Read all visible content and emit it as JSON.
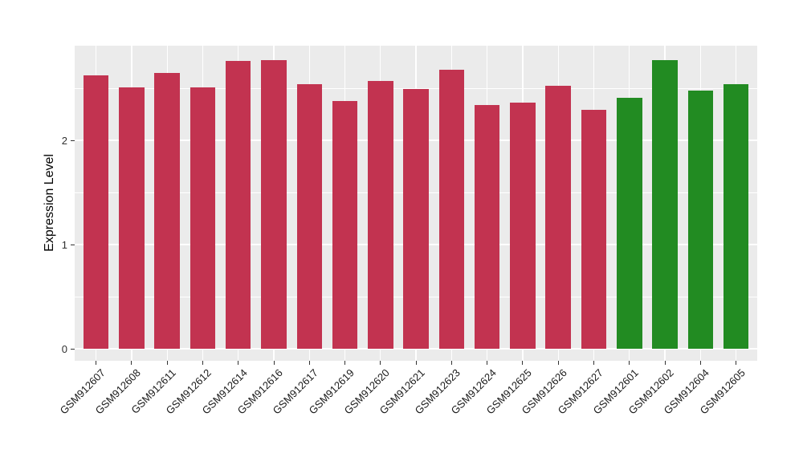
{
  "chart_data": {
    "type": "bar",
    "title": "",
    "xlabel": "",
    "ylabel": "Expression Level",
    "categories": [
      "GSM912607",
      "GSM912608",
      "GSM912611",
      "GSM912612",
      "GSM912614",
      "GSM912616",
      "GSM912617",
      "GSM912619",
      "GSM912620",
      "GSM912621",
      "GSM912623",
      "GSM912624",
      "GSM912625",
      "GSM912626",
      "GSM912627",
      "GSM912601",
      "GSM912602",
      "GSM912604",
      "GSM912605"
    ],
    "values": [
      2.62,
      2.51,
      2.65,
      2.51,
      2.76,
      2.77,
      2.54,
      2.38,
      2.57,
      2.49,
      2.68,
      2.34,
      2.36,
      2.52,
      2.29,
      2.41,
      2.77,
      2.48,
      2.54
    ],
    "groups": [
      "red",
      "red",
      "red",
      "red",
      "red",
      "red",
      "red",
      "red",
      "red",
      "red",
      "red",
      "red",
      "red",
      "red",
      "red",
      "green",
      "green",
      "green",
      "green"
    ],
    "group_colors": {
      "red": "#C23350",
      "green": "#228B22"
    },
    "y_major_ticks": [
      0,
      1,
      2
    ],
    "y_minor_ticks": [
      0.5,
      1.5,
      2.5
    ],
    "ylim": [
      0,
      2.9
    ],
    "grid": "on",
    "legend": "none",
    "panel_background": "#EBEBEB",
    "grid_color": "#FFFFFF",
    "axis_text_color": "#303030"
  }
}
